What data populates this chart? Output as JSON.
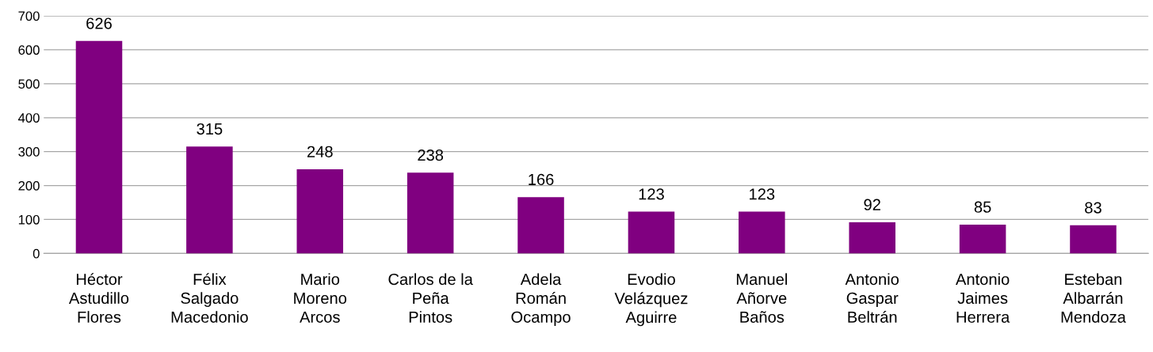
{
  "chart_data": {
    "type": "bar",
    "categories": [
      "Héctor\nAstudillo\nFlores",
      "Félix\nSalgado\nMacedonio",
      "Mario\nMoreno\nArcos",
      "Carlos de la\nPeña\nPintos",
      "Adela\nRomán\nOcampo",
      "Evodio\nVelázquez\nAguirre",
      "Manuel\nAñorve\nBaños",
      "Antonio\nGaspar\nBeltrán",
      "Antonio\nJaimes\nHerrera",
      "Esteban\nAlbarrán\nMendoza"
    ],
    "values": [
      626,
      315,
      248,
      238,
      166,
      123,
      123,
      92,
      85,
      83
    ],
    "color": "#800080",
    "ylim": [
      0,
      700
    ],
    "yticks": [
      0,
      100,
      200,
      300,
      400,
      500,
      600,
      700
    ],
    "grid": "y",
    "data_labels": true
  }
}
